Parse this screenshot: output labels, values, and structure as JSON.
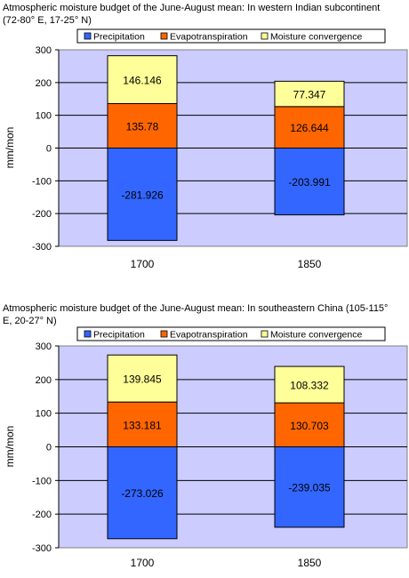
{
  "colors": {
    "plot_bg": "#ccccff",
    "precipitation": "#3366ff",
    "evapotranspiration": "#ff6600",
    "moisture_convergence": "#ffff99"
  },
  "chart_data": [
    {
      "type": "bar",
      "stacked": true,
      "title": "Atmospheric moisture budget of the June-August mean: In western Indian subcontinent (72-80° E, 17-25° N)",
      "ylabel": "mm/mon",
      "ylim": [
        -300,
        300
      ],
      "yticks": [
        300,
        200,
        100,
        0,
        -100,
        -200,
        -300
      ],
      "ytick_labels": [
        "300",
        "200",
        "100",
        "0",
        "-100",
        "-200",
        "-300"
      ],
      "categories": [
        "1700",
        "1850"
      ],
      "legend_position": "top",
      "series": [
        {
          "name": "Precipitation",
          "values": [
            -281.926,
            -203.991
          ],
          "labels": [
            "-281.926",
            "-203.991"
          ]
        },
        {
          "name": "Evapotranspiration",
          "values": [
            135.78,
            126.644
          ],
          "labels": [
            "135.78",
            "126.644"
          ]
        },
        {
          "name": "Moisture convergence",
          "values": [
            146.146,
            77.347
          ],
          "labels": [
            "146.146",
            "77.347"
          ]
        }
      ]
    },
    {
      "type": "bar",
      "stacked": true,
      "title": "Atmospheric moisture budget of the June-August mean: In southeastern China (105-115° E, 20-27° N)",
      "ylabel": "mm/mon",
      "ylim": [
        -300,
        300
      ],
      "yticks": [
        300,
        200,
        100,
        0,
        -100,
        -200,
        -300
      ],
      "ytick_labels": [
        "300",
        "200",
        "100",
        "0",
        "-100",
        "-200",
        "-300"
      ],
      "categories": [
        "1700",
        "1850"
      ],
      "legend_position": "top",
      "series": [
        {
          "name": "Precipitation",
          "values": [
            -273.026,
            -239.035
          ],
          "labels": [
            "-273.026",
            "-239.035"
          ]
        },
        {
          "name": "Evapotranspiration",
          "values": [
            133.181,
            130.703
          ],
          "labels": [
            "133.181",
            "130.703"
          ]
        },
        {
          "name": "Moisture convergence",
          "values": [
            139.845,
            108.332
          ],
          "labels": [
            "139.845",
            "108.332"
          ]
        }
      ]
    }
  ]
}
